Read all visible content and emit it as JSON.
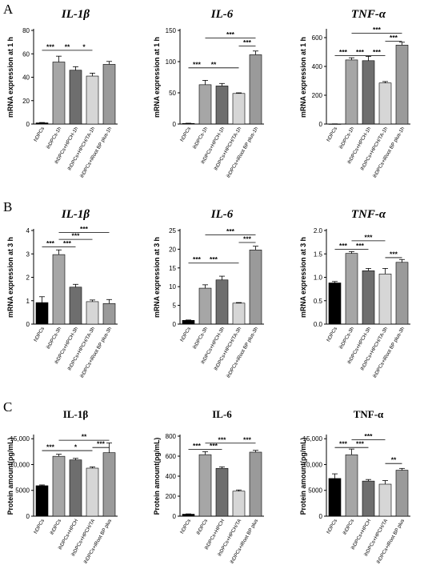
{
  "panels": [
    {
      "label": "A"
    },
    {
      "label": "B"
    },
    {
      "label": "C"
    }
  ],
  "chart_data": [
    {
      "type": "bar",
      "panel": "A",
      "title": "IL-1β",
      "title_style": "italic",
      "ylabel": "mRNA expression at 1 h",
      "ylim": [
        0,
        80
      ],
      "yticks": [
        "0",
        "20",
        "40",
        "60",
        "80"
      ],
      "categories": [
        "hDPCs",
        "ihDPCs-1h",
        "ihDPCs+HPCH-1h",
        "ihDPCs+HPCH/TA-1h",
        "ihDPCs+iRoot BP plus-1h"
      ],
      "values": [
        1,
        53,
        46,
        41,
        51
      ],
      "errors": [
        0.3,
        5,
        3,
        2.5,
        2.5
      ],
      "colors": [
        "#000000",
        "#a6a6a6",
        "#6e6e6e",
        "#d6d6d6",
        "#9a9a9a"
      ],
      "significance": [
        {
          "from": 0,
          "to": 1,
          "label": "***",
          "y": 63
        },
        {
          "from": 1,
          "to": 2,
          "label": "**",
          "y": 63
        },
        {
          "from": 2,
          "to": 3,
          "label": "*",
          "y": 63
        }
      ]
    },
    {
      "type": "bar",
      "panel": "A",
      "title": "IL-6",
      "title_style": "italic",
      "ylabel": "mRNA expression at 1 h",
      "ylim": [
        0,
        150
      ],
      "yticks": [
        "0",
        "50",
        "100",
        "150"
      ],
      "categories": [
        "hDPCs",
        "ihDPCs-1h",
        "ihDPCs+HPCH-1h",
        "ihDPCs+HPCH/TA-1h",
        "ihDPCs+iRoot BP plus-1h"
      ],
      "values": [
        1,
        63,
        61,
        49,
        111
      ],
      "errors": [
        0.3,
        7,
        4,
        1,
        6
      ],
      "colors": [
        "#000000",
        "#a6a6a6",
        "#6e6e6e",
        "#d6d6d6",
        "#9a9a9a"
      ],
      "significance": [
        {
          "from": 0,
          "to": 1,
          "label": "***",
          "y": 90
        },
        {
          "from": 1,
          "to": 2,
          "label": "**",
          "y": 90
        },
        {
          "from": 2,
          "to": 3,
          "label": "",
          "y": 90
        },
        {
          "from": 1,
          "to": 4,
          "label": "***",
          "y": 138
        },
        {
          "from": 3,
          "to": 4,
          "label": "***",
          "y": 125
        }
      ]
    },
    {
      "type": "bar",
      "panel": "A",
      "title": "TNF-α",
      "title_style": "italic",
      "ylabel": "mRNA expression at 1 h",
      "ylim": [
        0,
        650
      ],
      "yticks": [
        "0",
        "200",
        "400",
        "600"
      ],
      "categories": [
        "hDPCs",
        "ihDPCs-1h",
        "ihDPCs+HPCH-1h",
        "ihDPCs+HPCH/TA-1h",
        "ihDPCs+iRoot BP plus-1h"
      ],
      "values": [
        1,
        445,
        440,
        285,
        548
      ],
      "errors": [
        0.5,
        15,
        30,
        10,
        20
      ],
      "colors": [
        "#000000",
        "#a6a6a6",
        "#6e6e6e",
        "#d6d6d6",
        "#9a9a9a"
      ],
      "significance": [
        {
          "from": 0,
          "to": 1,
          "label": "***",
          "y": 475
        },
        {
          "from": 1,
          "to": 2,
          "label": "***",
          "y": 475
        },
        {
          "from": 2,
          "to": 3,
          "label": "***",
          "y": 475
        },
        {
          "from": 1,
          "to": 4,
          "label": "***",
          "y": 630
        },
        {
          "from": 3,
          "to": 4,
          "label": "***",
          "y": 575
        }
      ]
    },
    {
      "type": "bar",
      "panel": "B",
      "title": "IL-1β",
      "title_style": "italic",
      "ylabel": "mRNA expression at 3 h",
      "ylim": [
        0,
        4
      ],
      "yticks": [
        "0",
        "1",
        "2",
        "3",
        "4"
      ],
      "categories": [
        "hDPCs",
        "ihDPCs-3h",
        "ihDPCs+HPCH-3h",
        "ihDPCs+HPCH/TA-3h",
        "ihDPCs+iRoot BP plus-3h"
      ],
      "values": [
        0.92,
        2.97,
        1.58,
        0.96,
        0.88
      ],
      "errors": [
        0.25,
        0.2,
        0.12,
        0.07,
        0.17
      ],
      "colors": [
        "#000000",
        "#a6a6a6",
        "#6e6e6e",
        "#d6d6d6",
        "#9a9a9a"
      ],
      "significance": [
        {
          "from": 0,
          "to": 1,
          "label": "***",
          "y": 3.3
        },
        {
          "from": 1,
          "to": 2,
          "label": "***",
          "y": 3.3
        },
        {
          "from": 1,
          "to": 3,
          "label": "***",
          "y": 3.62
        },
        {
          "from": 1,
          "to": 4,
          "label": "***",
          "y": 3.92
        }
      ]
    },
    {
      "type": "bar",
      "panel": "B",
      "title": "IL-6",
      "title_style": "italic",
      "ylabel": "mRNA expression at 3 h",
      "ylim": [
        0,
        25
      ],
      "yticks": [
        "0",
        "5",
        "10",
        "15",
        "20",
        "25"
      ],
      "categories": [
        "hDPCs",
        "ihDPCs-3h",
        "ihDPCs+HPCH-3h",
        "ihDPCs+HPCH/TA-3h",
        "ihDPCs+iRoot BP plus-3h"
      ],
      "values": [
        1,
        9.6,
        11.8,
        5.6,
        19.8
      ],
      "errors": [
        0.1,
        0.9,
        1,
        0.15,
        1
      ],
      "colors": [
        "#000000",
        "#a6a6a6",
        "#6e6e6e",
        "#d6d6d6",
        "#9a9a9a"
      ],
      "significance": [
        {
          "from": 0,
          "to": 1,
          "label": "***",
          "y": 16.3
        },
        {
          "from": 1,
          "to": 2,
          "label": "***",
          "y": 16.3
        },
        {
          "from": 2,
          "to": 3,
          "label": "",
          "y": 16.3
        },
        {
          "from": 1,
          "to": 4,
          "label": "***",
          "y": 23.8
        },
        {
          "from": 3,
          "to": 4,
          "label": "***",
          "y": 21.8
        }
      ]
    },
    {
      "type": "bar",
      "panel": "B",
      "title": "TNF-α",
      "title_style": "italic",
      "ylabel": "mRNA expression at 3 h",
      "ylim": [
        0,
        2
      ],
      "yticks": [
        "0.0",
        "0.5",
        "1.0",
        "1.5",
        "2.0"
      ],
      "categories": [
        "hDPCs",
        "ihDPCs-3h",
        "ihDPCs+HPCH-3h",
        "ihDPCs+HPCH/TA-3h",
        "ihDPCs+iRoot BP plus-3h"
      ],
      "values": [
        0.88,
        1.51,
        1.14,
        1.07,
        1.32
      ],
      "errors": [
        0.03,
        0.04,
        0.05,
        0.12,
        0.06
      ],
      "colors": [
        "#000000",
        "#a6a6a6",
        "#6e6e6e",
        "#d6d6d6",
        "#9a9a9a"
      ],
      "significance": [
        {
          "from": 0,
          "to": 1,
          "label": "***",
          "y": 1.6
        },
        {
          "from": 1,
          "to": 2,
          "label": "***",
          "y": 1.6
        },
        {
          "from": 1,
          "to": 3,
          "label": "***",
          "y": 1.78
        },
        {
          "from": 3,
          "to": 4,
          "label": "***",
          "y": 1.42
        }
      ]
    },
    {
      "type": "bar",
      "panel": "C",
      "title": "IL-1β",
      "title_style": "upright",
      "ylabel": "Protein amount(pg/mL)",
      "ylim": [
        0,
        15500
      ],
      "yticks": [
        "0",
        "5000",
        "10,000",
        "15,000"
      ],
      "categories": [
        "hDPCs",
        "ihDPCs",
        "ihDPCs+HPCH",
        "ihDPCs+HPCH/TA",
        "ihDPCs+iRoot BP plus"
      ],
      "values": [
        5900,
        11600,
        10900,
        9300,
        12300
      ],
      "errors": [
        150,
        400,
        300,
        250,
        1900
      ],
      "colors": [
        "#000000",
        "#a6a6a6",
        "#6e6e6e",
        "#d6d6d6",
        "#9a9a9a"
      ],
      "significance": [
        {
          "from": 0,
          "to": 1,
          "label": "***",
          "y": 12700
        },
        {
          "from": 1,
          "to": 3,
          "label": "*",
          "y": 12700
        },
        {
          "from": 1,
          "to": 4,
          "label": "**",
          "y": 14700
        },
        {
          "from": 3,
          "to": 4,
          "label": "***",
          "y": 13300
        }
      ]
    },
    {
      "type": "bar",
      "panel": "C",
      "title": "IL-6",
      "title_style": "upright",
      "ylabel": "Protein amount(pg/mL)",
      "ylim": [
        0,
        800
      ],
      "yticks": [
        "0",
        "200",
        "400",
        "600",
        "800"
      ],
      "categories": [
        "hDPCs",
        "ihDPCs",
        "ihDPCs+HPCH",
        "ihDPCs+HPCH/TA",
        "ihDPCs+iRoot BP plus"
      ],
      "values": [
        20,
        615,
        478,
        250,
        640
      ],
      "errors": [
        3,
        30,
        15,
        12,
        18
      ],
      "colors": [
        "#000000",
        "#a6a6a6",
        "#6e6e6e",
        "#d6d6d6",
        "#9a9a9a"
      ],
      "significance": [
        {
          "from": 0,
          "to": 1,
          "label": "***",
          "y": 668
        },
        {
          "from": 1,
          "to": 2,
          "label": "***",
          "y": 668
        },
        {
          "from": 1,
          "to": 3,
          "label": "***",
          "y": 730
        },
        {
          "from": 3,
          "to": 4,
          "label": "***",
          "y": 730
        }
      ]
    },
    {
      "type": "bar",
      "panel": "C",
      "title": "TNF-α",
      "title_style": "upright",
      "ylabel": "Protein amount(pg/mL)",
      "ylim": [
        0,
        15500
      ],
      "yticks": [
        "0",
        "5000",
        "10,000",
        "15,000"
      ],
      "categories": [
        "hDPCs",
        "ihDPCs",
        "ihDPCs+HPCH",
        "ihDPCs+HPCH/TA",
        "ihDPCs+iRoot BP plus"
      ],
      "values": [
        7300,
        11900,
        6800,
        6200,
        8900
      ],
      "errors": [
        900,
        1100,
        300,
        700,
        350
      ],
      "colors": [
        "#000000",
        "#a6a6a6",
        "#6e6e6e",
        "#d6d6d6",
        "#9a9a9a"
      ],
      "significance": [
        {
          "from": 0,
          "to": 1,
          "label": "***",
          "y": 13300
        },
        {
          "from": 1,
          "to": 2,
          "label": "***",
          "y": 13300
        },
        {
          "from": 1,
          "to": 3,
          "label": "***",
          "y": 14800
        },
        {
          "from": 3,
          "to": 4,
          "label": "**",
          "y": 10200
        }
      ]
    }
  ]
}
